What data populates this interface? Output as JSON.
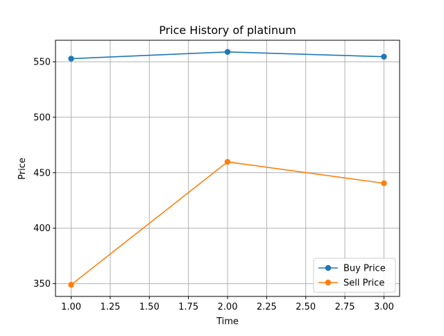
{
  "chart_data": {
    "type": "line",
    "title": "Price History of platinum",
    "xlabel": "Time",
    "ylabel": "Price",
    "x": [
      1,
      2,
      3
    ],
    "series": [
      {
        "name": "Buy Price",
        "values": [
          552.8,
          558.9,
          554.6
        ],
        "color": "#1f77b4"
      },
      {
        "name": "Sell Price",
        "values": [
          349.0,
          459.8,
          440.5
        ],
        "color": "#ff7f0e"
      }
    ],
    "xlim": [
      0.9,
      3.1
    ],
    "ylim": [
      338.5,
      569.4
    ],
    "xticks": [
      "1.00",
      "1.25",
      "1.50",
      "1.75",
      "2.00",
      "2.25",
      "2.50",
      "2.75",
      "3.00"
    ],
    "yticks": [
      "350",
      "400",
      "450",
      "500",
      "550"
    ],
    "grid": true,
    "legend_position": "lower-right",
    "marker": "circle"
  }
}
